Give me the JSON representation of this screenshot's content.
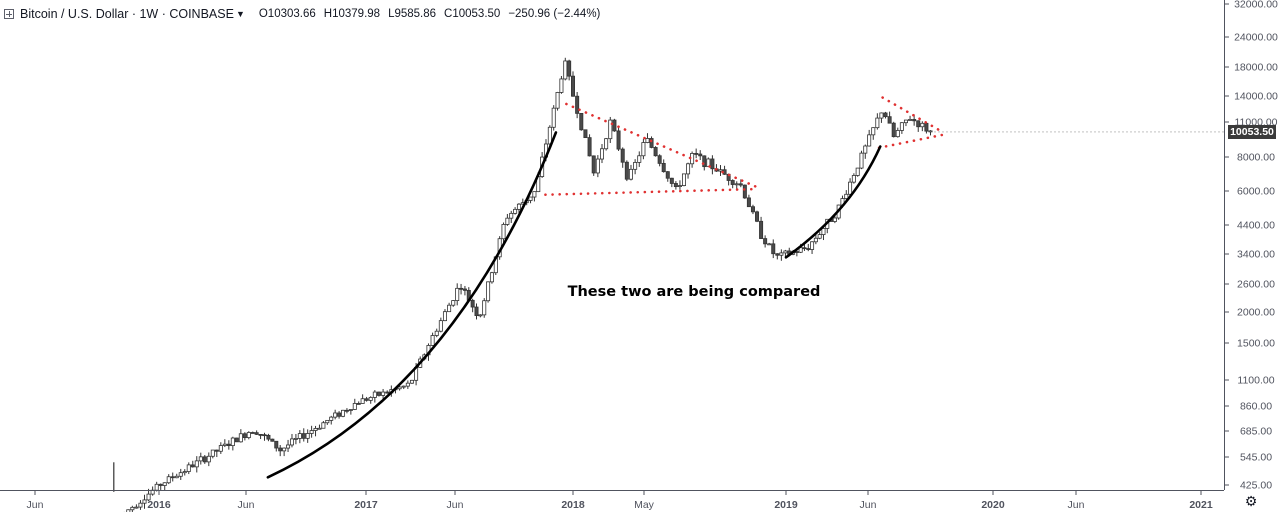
{
  "legend": {
    "symbol": "Bitcoin / U.S. Dollar · 1W · COINBASE",
    "open": "O10303.66",
    "high": "H10379.98",
    "low": "L9585.86",
    "close": "C10053.50",
    "change": "−250.96 (−2.44%)",
    "collapse_icon": "collapse-plus-icon",
    "dropdown_icon": "chevron-down-icon"
  },
  "last_price_label": "10053.50",
  "annotation": "These two are being compared",
  "settings_icon": "gear-icon",
  "colors": {
    "up": "#ffffff",
    "down": "#4a4a4a",
    "wick": "#333333",
    "trendline": "#e03131",
    "curve": "#000000",
    "badge": "#3a3a3a"
  },
  "chart_data": {
    "type": "candlestick",
    "scale": "log",
    "title": "Bitcoin / U.S. Dollar · 1W · COINBASE",
    "y_tick_labels": [
      "32000.00",
      "24000.00",
      "18000.00",
      "14000.00",
      "11000.00",
      "8000.00",
      "6000.00",
      "4400.00",
      "3400.00",
      "2600.00",
      "2000.00",
      "1500.00",
      "1100.00",
      "860.00",
      "685.00",
      "545.00",
      "425.00"
    ],
    "x_tick_labels": [
      "Jun",
      "2016",
      "Jun",
      "2017",
      "Jun",
      "2018",
      "May",
      "2019",
      "Jun",
      "2020",
      "Jun",
      "2021"
    ],
    "x_tick_dates": [
      "2015-06-01",
      "2016-01-01",
      "2016-06-01",
      "2017-01-01",
      "2017-06-01",
      "2018-01-01",
      "2018-05-01",
      "2019-01-01",
      "2019-06-01",
      "2020-01-01",
      "2020-06-01",
      "2021-01-01"
    ],
    "x_range": [
      "2015-03-01",
      "2021-03-20"
    ],
    "y_range": [
      400,
      34000
    ],
    "last_price": 10053.5,
    "key_points": [
      {
        "date": "2015-11-01",
        "close": 330
      },
      {
        "date": "2016-01-05",
        "close": 430
      },
      {
        "date": "2016-06-15",
        "close": 700
      },
      {
        "date": "2016-08-01",
        "close": 580
      },
      {
        "date": "2016-12-20",
        "close": 900
      },
      {
        "date": "2017-03-15",
        "close": 1050
      },
      {
        "date": "2017-06-10",
        "close": 2600
      },
      {
        "date": "2017-07-15",
        "close": 1900
      },
      {
        "date": "2017-09-01",
        "close": 4700
      },
      {
        "date": "2017-10-25",
        "close": 6000
      },
      {
        "date": "2017-12-17",
        "close": 19000
      },
      {
        "date": "2018-02-05",
        "close": 7000
      },
      {
        "date": "2018-03-05",
        "close": 11000
      },
      {
        "date": "2018-04-05",
        "close": 6600
      },
      {
        "date": "2018-05-05",
        "close": 9500
      },
      {
        "date": "2018-06-25",
        "close": 6000
      },
      {
        "date": "2018-07-25",
        "close": 8200
      },
      {
        "date": "2018-10-15",
        "close": 6300
      },
      {
        "date": "2018-11-20",
        "close": 4000
      },
      {
        "date": "2018-12-15",
        "close": 3300
      },
      {
        "date": "2019-02-10",
        "close": 3600
      },
      {
        "date": "2019-04-05",
        "close": 5000
      },
      {
        "date": "2019-05-25",
        "close": 8500
      },
      {
        "date": "2019-06-26",
        "close": 12500
      },
      {
        "date": "2019-07-15",
        "close": 9600
      },
      {
        "date": "2019-08-10",
        "close": 11500
      },
      {
        "date": "2019-09-16",
        "close": 10053.5
      }
    ],
    "trendlines": [
      {
        "type": "dotted-descending",
        "points": [
          {
            "date": "2017-12-20",
            "price": 13000
          },
          {
            "date": "2018-11-12",
            "price": 6200
          }
        ]
      },
      {
        "type": "dotted-support",
        "points": [
          {
            "date": "2017-11-12",
            "price": 5800
          },
          {
            "date": "2018-11-12",
            "price": 6100
          }
        ]
      },
      {
        "type": "dotted-descending",
        "points": [
          {
            "date": "2019-06-26",
            "price": 13800
          },
          {
            "date": "2019-10-08",
            "price": 10000
          }
        ]
      },
      {
        "type": "dotted-support",
        "points": [
          {
            "date": "2019-06-20",
            "price": 8700
          },
          {
            "date": "2019-10-08",
            "price": 9800
          }
        ]
      }
    ],
    "curves": [
      {
        "points": [
          {
            "date": "2016-07-10",
            "price": 455
          },
          {
            "date": "2017-06-01",
            "price": 1000
          },
          {
            "date": "2017-12-01",
            "price": 10000
          }
        ]
      },
      {
        "points": [
          {
            "date": "2019-01-01",
            "price": 3300
          },
          {
            "date": "2019-05-01",
            "price": 5000
          },
          {
            "date": "2019-06-22",
            "price": 8800
          }
        ]
      }
    ],
    "xlabel": "",
    "ylabel": "",
    "grid": false
  }
}
